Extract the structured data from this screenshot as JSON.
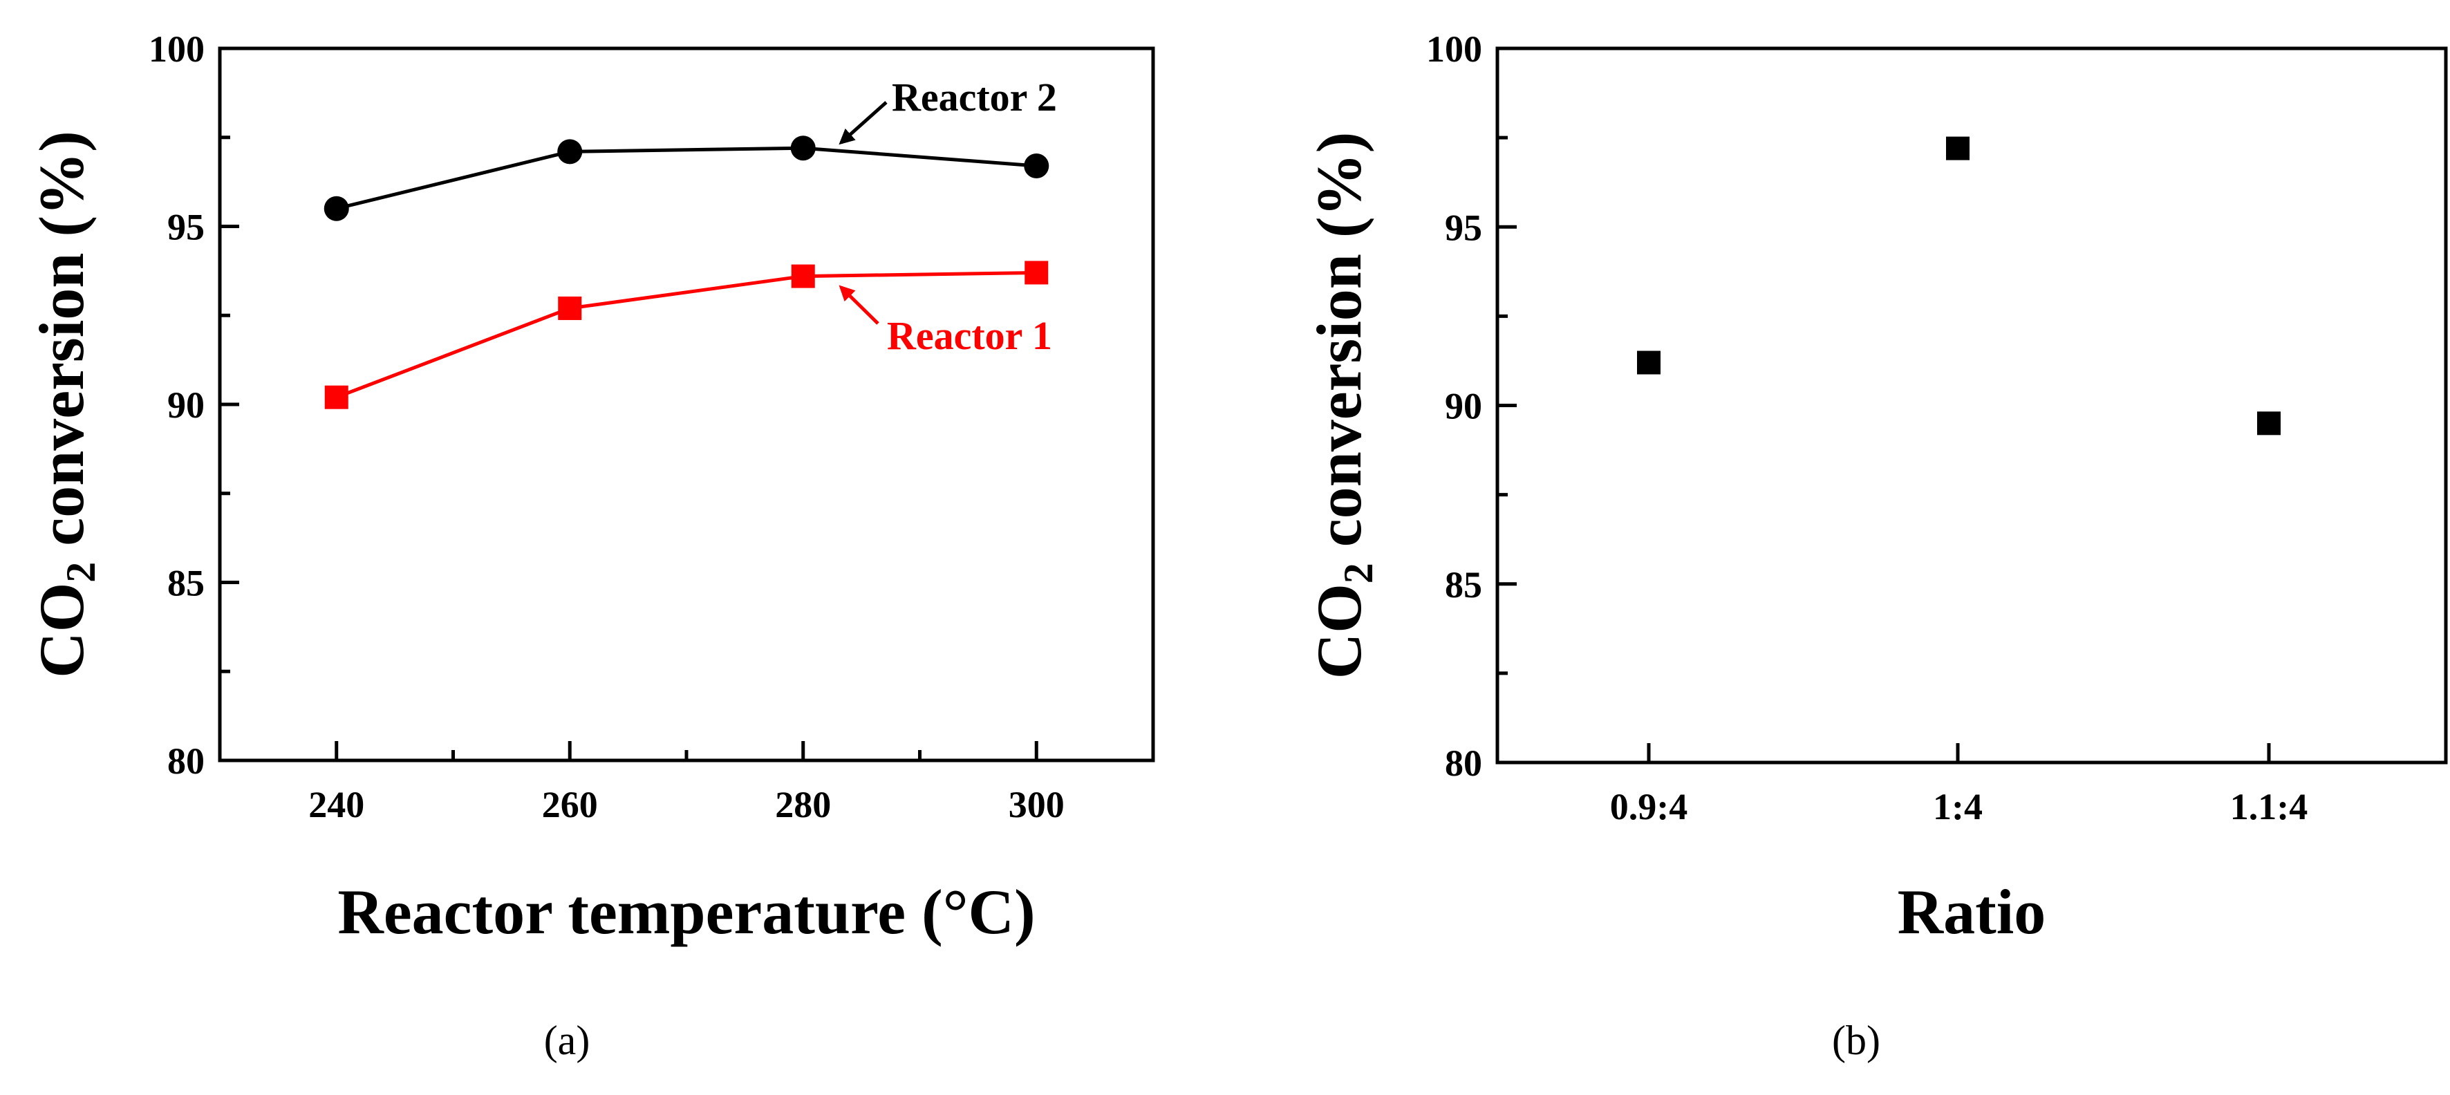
{
  "chart_data": [
    {
      "type": "line",
      "panel_label": "a",
      "xlabel": "Reactor temperature (°C)",
      "ylabel": {
        "prefix": "CO",
        "subscript": "2",
        "suffix": " conversion (%)"
      },
      "xlim": [
        230,
        310
      ],
      "ylim": [
        80,
        100
      ],
      "xticks": [
        240,
        260,
        280,
        300
      ],
      "xminor": [
        250,
        270,
        290
      ],
      "yticks": [
        80,
        85,
        90,
        95,
        100
      ],
      "x": [
        240,
        260,
        280,
        300
      ],
      "series": [
        {
          "name": "Reactor 2",
          "color": "#000000",
          "marker": "circle",
          "values": [
            95.5,
            97.1,
            97.2,
            96.7
          ]
        },
        {
          "name": "Reactor 1",
          "color": "#ff0000",
          "marker": "square",
          "values": [
            90.2,
            92.7,
            93.6,
            93.7
          ]
        }
      ],
      "annotations": [
        {
          "text": "Reactor 2",
          "color": "#000000",
          "target_series": 0,
          "target_index": 2
        },
        {
          "text": "Reactor 1",
          "color": "#ff0000",
          "target_series": 1,
          "target_index": 2
        }
      ]
    },
    {
      "type": "scatter",
      "panel_label": "b",
      "xlabel": "Ratio",
      "ylabel": {
        "prefix": "CO",
        "subscript": "2",
        "suffix": " conversion (%)"
      },
      "ylim": [
        80,
        100
      ],
      "yticks": [
        80,
        85,
        90,
        95,
        100
      ],
      "categories": [
        "0.9:4",
        "1:4",
        "1.1:4"
      ],
      "series": [
        {
          "name": "CO2 conversion",
          "color": "#000000",
          "marker": "square",
          "values": [
            91.2,
            97.2,
            89.5
          ]
        }
      ]
    }
  ]
}
